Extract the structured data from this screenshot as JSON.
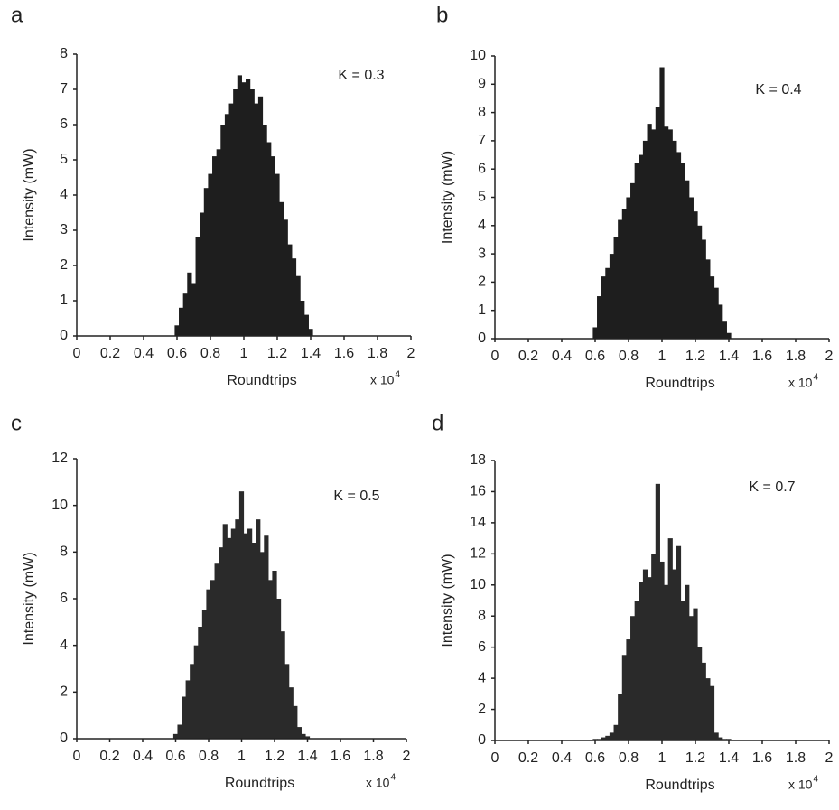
{
  "chart_data": [
    {
      "type": "bar",
      "label": "a",
      "annotation": "K = 0.3",
      "xlabel": "Roundtrips",
      "ylabel": "Intensity (mW)",
      "x_multiplier": "x 10",
      "x_multiplier_exp": "4",
      "color": "#1e1e1e",
      "xlim": [
        0,
        2
      ],
      "xticks": [
        0,
        0.2,
        0.4,
        0.6,
        0.8,
        1,
        1.2,
        1.4,
        1.6,
        1.8,
        2
      ],
      "ylim": [
        0,
        8
      ],
      "yticks": [
        0,
        1,
        2,
        3,
        4,
        5,
        6,
        7,
        8
      ],
      "x": [
        0.6,
        0.625,
        0.65,
        0.675,
        0.7,
        0.725,
        0.75,
        0.775,
        0.8,
        0.825,
        0.85,
        0.875,
        0.9,
        0.925,
        0.95,
        0.975,
        1.0,
        1.025,
        1.05,
        1.075,
        1.1,
        1.125,
        1.15,
        1.175,
        1.2,
        1.225,
        1.25,
        1.275,
        1.3,
        1.325,
        1.35,
        1.375,
        1.4
      ],
      "values": [
        0.3,
        0.8,
        1.2,
        1.8,
        1.5,
        2.8,
        3.5,
        4.2,
        4.6,
        5.1,
        5.3,
        6.0,
        6.3,
        6.6,
        7.0,
        7.4,
        7.2,
        7.3,
        7.0,
        6.6,
        6.8,
        6.0,
        5.5,
        5.1,
        4.6,
        3.8,
        3.3,
        2.6,
        2.2,
        1.7,
        1.0,
        0.6,
        0.2
      ]
    },
    {
      "type": "bar",
      "label": "b",
      "annotation": "K = 0.4",
      "xlabel": "Roundtrips",
      "ylabel": "Intensity (mW)",
      "x_multiplier": "x 10",
      "x_multiplier_exp": "4",
      "color": "#1e1e1e",
      "xlim": [
        0,
        2
      ],
      "xticks": [
        0,
        0.2,
        0.4,
        0.6,
        0.8,
        1,
        1.2,
        1.4,
        1.6,
        1.8,
        2
      ],
      "ylim": [
        0,
        10
      ],
      "yticks": [
        0,
        1,
        2,
        3,
        4,
        5,
        6,
        7,
        8,
        9,
        10
      ],
      "x": [
        0.6,
        0.625,
        0.65,
        0.675,
        0.7,
        0.725,
        0.75,
        0.775,
        0.8,
        0.825,
        0.85,
        0.875,
        0.9,
        0.925,
        0.95,
        0.975,
        1.0,
        1.025,
        1.05,
        1.075,
        1.1,
        1.125,
        1.15,
        1.175,
        1.2,
        1.225,
        1.25,
        1.275,
        1.3,
        1.325,
        1.35,
        1.375,
        1.4
      ],
      "values": [
        0.4,
        1.5,
        2.2,
        2.5,
        3.0,
        3.6,
        4.2,
        4.6,
        5.0,
        5.5,
        6.2,
        6.5,
        7.0,
        7.6,
        7.4,
        8.2,
        9.6,
        7.5,
        7.4,
        7.0,
        6.6,
        6.2,
        5.6,
        5.0,
        4.5,
        4.0,
        3.5,
        2.8,
        2.2,
        1.8,
        1.2,
        0.6,
        0.2
      ]
    },
    {
      "type": "bar",
      "label": "c",
      "annotation": "K = 0.5",
      "xlabel": "Roundtrips",
      "ylabel": "Intensity (mW)",
      "x_multiplier": "x 10",
      "x_multiplier_exp": "4",
      "color": "#2a2a2a",
      "xlim": [
        0,
        2
      ],
      "xticks": [
        0,
        0.2,
        0.4,
        0.6,
        0.8,
        1,
        1.2,
        1.4,
        1.6,
        1.8,
        2
      ],
      "ylim": [
        0,
        12
      ],
      "yticks": [
        0,
        2,
        4,
        6,
        8,
        10,
        12
      ],
      "x": [
        0.6,
        0.625,
        0.65,
        0.675,
        0.7,
        0.725,
        0.75,
        0.775,
        0.8,
        0.825,
        0.85,
        0.875,
        0.9,
        0.925,
        0.95,
        0.975,
        1.0,
        1.025,
        1.05,
        1.075,
        1.1,
        1.125,
        1.15,
        1.175,
        1.2,
        1.225,
        1.25,
        1.275,
        1.3,
        1.325,
        1.35,
        1.375,
        1.4
      ],
      "values": [
        0.2,
        0.6,
        1.8,
        2.5,
        3.2,
        4.0,
        4.8,
        5.5,
        6.4,
        6.8,
        7.5,
        8.2,
        9.2,
        8.6,
        9.0,
        9.4,
        10.6,
        8.8,
        9.0,
        8.4,
        9.4,
        8.0,
        8.7,
        6.8,
        7.2,
        6.0,
        4.6,
        3.2,
        2.2,
        1.4,
        0.5,
        0.2,
        0.1
      ]
    },
    {
      "type": "bar",
      "label": "d",
      "annotation": "K = 0.7",
      "xlabel": "Roundtrips",
      "ylabel": "Intensity (mW)",
      "x_multiplier": "x 10",
      "x_multiplier_exp": "4",
      "color": "#2a2a2a",
      "xlim": [
        0,
        2
      ],
      "xticks": [
        0,
        0.2,
        0.4,
        0.6,
        0.8,
        1,
        1.2,
        1.4,
        1.6,
        1.8,
        2
      ],
      "ylim": [
        0,
        18
      ],
      "yticks": [
        0,
        2,
        4,
        6,
        8,
        10,
        12,
        14,
        16,
        18
      ],
      "x": [
        0.6,
        0.625,
        0.65,
        0.675,
        0.7,
        0.725,
        0.75,
        0.775,
        0.8,
        0.825,
        0.85,
        0.875,
        0.9,
        0.925,
        0.95,
        0.975,
        1.0,
        1.025,
        1.05,
        1.075,
        1.1,
        1.125,
        1.15,
        1.175,
        1.2,
        1.225,
        1.25,
        1.275,
        1.3,
        1.325,
        1.35,
        1.375,
        1.4
      ],
      "values": [
        0.1,
        0.1,
        0.2,
        0.3,
        0.5,
        1.0,
        3.0,
        5.5,
        6.5,
        8.0,
        9.0,
        10.2,
        11.0,
        10.5,
        12.0,
        16.5,
        11.5,
        10.0,
        13.0,
        11.0,
        12.5,
        9.0,
        10.0,
        8.0,
        8.5,
        6.0,
        5.0,
        4.0,
        3.5,
        0.5,
        0.2,
        0.1,
        0.1
      ]
    }
  ]
}
